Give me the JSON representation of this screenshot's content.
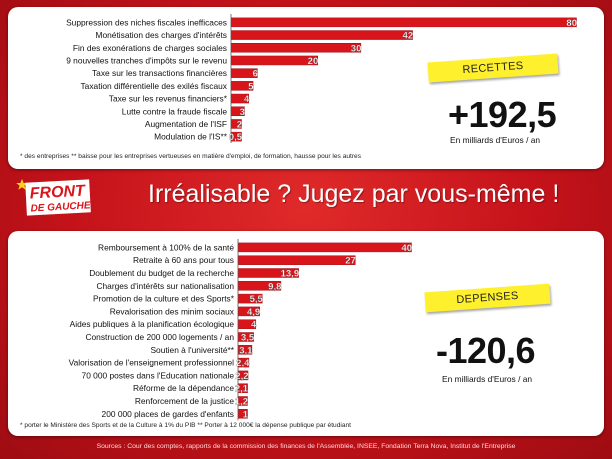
{
  "headline": "Irréalisable ? Jugez par vous-même !",
  "logo": {
    "line1": "FRONT",
    "line2": "DE GAUCHE"
  },
  "recettes": {
    "badge": "RECETTES",
    "total": "+192,5",
    "unit": "En milliards d'Euros / an",
    "footnote": "* des entreprises ** baisse pour les entreprises vertueuses en matière d'emploi, de formation, hausse pour les autres"
  },
  "depenses": {
    "badge": "DEPENSES",
    "total": "-120,6",
    "unit": "En milliards d'Euros / an",
    "footnote": "* porter le Ministère des Sports et de la Culture à 1% du PIB ** Porter à 12 000€ la dépense publique par étudiant"
  },
  "sources": "Sources : Cour des comptes, rapports de la commission des finances de l'Assemblée, INSEE, Fondation Terra Nova, Institut de l'Entreprise",
  "colors": {
    "bar": "#d9151c",
    "bar_edge": "#a50e14",
    "background": "#c8141b",
    "sticky": "#fff02e"
  },
  "chart_data": [
    {
      "type": "bar",
      "orientation": "horizontal",
      "categories": [
        "Suppression des niches fiscales inefficaces",
        "Monétisation des charges d'intérêts",
        "Fin des exonérations de charges sociales",
        "9 nouvelles tranches d'impôts sur le revenu",
        "Taxe sur les transactions financières",
        "Taxation différentielle des exilés fiscaux",
        "Taxe sur les revenus financiers*",
        "Lutte contre la fraude fiscale",
        "Augmentation de l'ISF",
        "Modulation de l'IS**"
      ],
      "values": [
        80,
        42,
        30,
        20,
        6,
        5,
        4,
        3,
        2,
        0.5
      ],
      "value_labels": [
        "80",
        "42",
        "30",
        "20",
        "6",
        "5",
        "4",
        "3",
        "2",
        "0,5"
      ],
      "xlim": [
        0,
        80
      ]
    },
    {
      "type": "bar",
      "orientation": "horizontal",
      "categories": [
        "Remboursement à 100% de la santé",
        "Retraite à 60 ans pour tous",
        "Doublement du budget de la recherche",
        "Charges d'intérêts sur nationalisation",
        "Promotion de la culture et des Sports*",
        "Revalorisation des minim sociaux",
        "Aides publiques à la planification écologique",
        "Construction de 200 000 logements / an",
        "Soutien à l'université**",
        "Valorisation de l'enseignement professionnel",
        "70 000 postes dans l'Education nationale",
        "Réforme de la dépendance",
        "Renforcement de la justice",
        "200 000 places de gardes d'enfants"
      ],
      "values": [
        40,
        27,
        13.9,
        9.8,
        5.5,
        4.9,
        4,
        3.5,
        3.1,
        2.4,
        2.2,
        2.1,
        1.2,
        1
      ],
      "value_labels": [
        "40",
        "27",
        "13,9",
        "9,8",
        "5,5",
        "4,9",
        "4",
        "3,5",
        "3,1",
        "2,4",
        "2,2",
        "2,1",
        "1,2",
        "1"
      ],
      "xlim": [
        0,
        40
      ]
    }
  ]
}
